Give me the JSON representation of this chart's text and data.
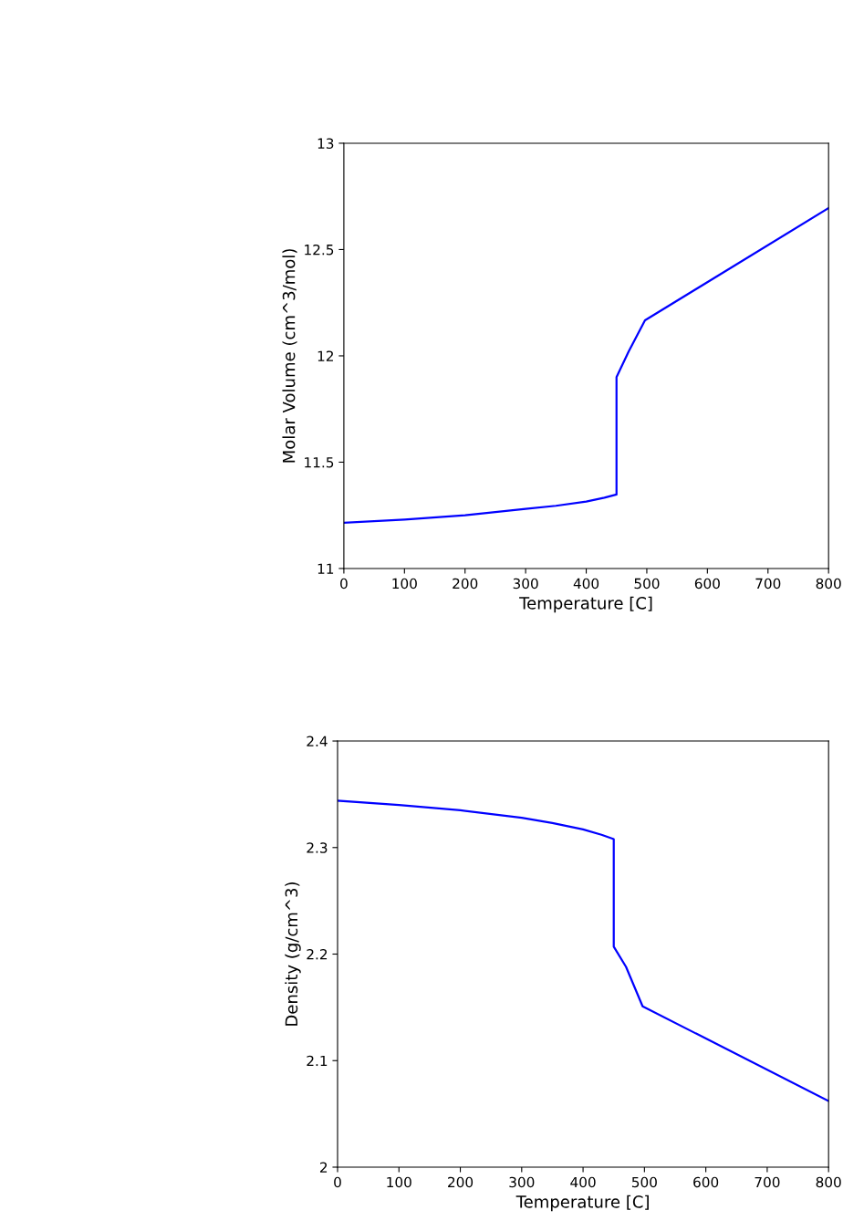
{
  "chart_data": [
    {
      "type": "line",
      "xlabel": "Temperature [C]",
      "ylabel": "Molar Volume (cm^3/mol)",
      "xlim": [
        0,
        800
      ],
      "ylim": [
        11,
        13
      ],
      "xticks": [
        0,
        100,
        200,
        300,
        400,
        500,
        600,
        700,
        800
      ],
      "yticks": [
        11,
        11.5,
        12,
        12.5,
        13
      ],
      "grid": false,
      "series": [
        {
          "color": "#0000ff",
          "x": [
            0,
            100,
            200,
            300,
            350,
            400,
            430,
            450,
            450,
            470,
            497,
            800
          ],
          "values": [
            11.215,
            11.23,
            11.25,
            11.28,
            11.295,
            11.315,
            11.333,
            11.348,
            11.9,
            12.02,
            12.167,
            12.695
          ]
        }
      ]
    },
    {
      "type": "line",
      "xlabel": "Temperature [C]",
      "ylabel": "Density (g/cm^3)",
      "xlim": [
        0,
        800
      ],
      "ylim": [
        2,
        2.4
      ],
      "xticks": [
        0,
        100,
        200,
        300,
        400,
        500,
        600,
        700,
        800
      ],
      "yticks": [
        2,
        2.1,
        2.2,
        2.3,
        2.4
      ],
      "grid": false,
      "series": [
        {
          "color": "#0000ff",
          "x": [
            0,
            100,
            200,
            300,
            350,
            400,
            430,
            450,
            450,
            470,
            497,
            800
          ],
          "values": [
            2.344,
            2.34,
            2.335,
            2.328,
            2.323,
            2.317,
            2.312,
            2.308,
            2.207,
            2.188,
            2.151,
            2.062
          ]
        }
      ]
    }
  ]
}
